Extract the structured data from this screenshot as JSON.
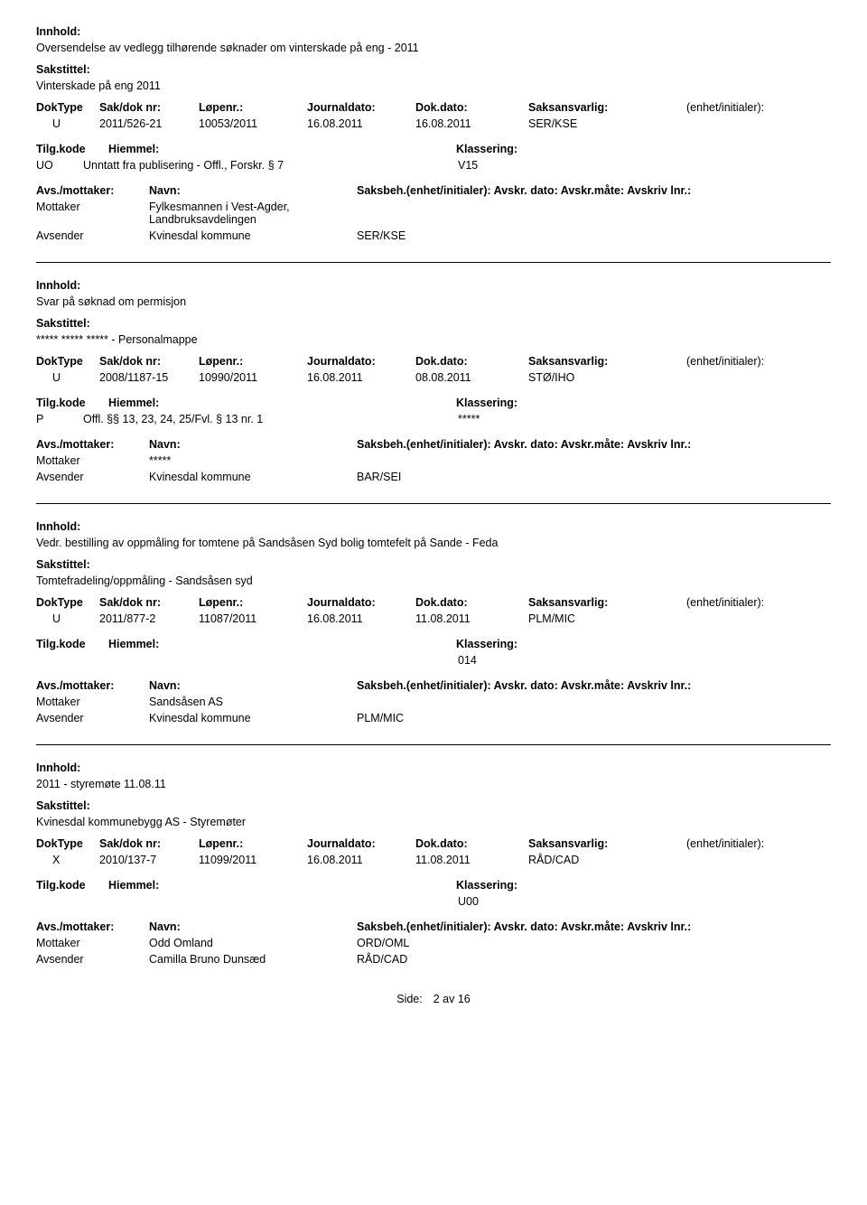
{
  "labels": {
    "innhold": "Innhold:",
    "sakstittel": "Sakstittel:",
    "doktype": "DokType",
    "sakdoknr": "Sak/dok nr:",
    "lopenr": "Løpenr.:",
    "journaldato": "Journaldato:",
    "dokdato": "Dok.dato:",
    "saksansvarlig": "Saksansvarlig:",
    "enhet": "(enhet/initialer):",
    "tilgkode": "Tilg.kode",
    "hiemmel": "Hiemmel:",
    "klassering": "Klassering:",
    "avsmottaker": "Avs./mottaker:",
    "navn": "Navn:",
    "saksbeh": "Saksbeh.(enhet/initialer):",
    "avskrdato": "Avskr. dato:",
    "avskrmate": "Avskr.måte:",
    "avskrivlnr": "Avskriv lnr.:",
    "mottaker": "Mottaker",
    "avsender": "Avsender",
    "side": "Side:",
    "sideval": "2  av  16"
  },
  "entries": [
    {
      "innhold": "Oversendelse av vedlegg tilhørende søknader om vinterskade på eng - 2011",
      "sakstittel": "Vinterskade på eng 2011",
      "doktype": "U",
      "sakdoknr": "2011/526-21",
      "lopenr": "10053/2011",
      "journaldato": "16.08.2011",
      "dokdato": "16.08.2011",
      "saksansvarlig": "SER/KSE",
      "enhet": "",
      "tilgkode": "UO",
      "hiemmel": "Unntatt fra publisering - Offl., Forskr. § 7",
      "klassering": "V15",
      "parties": [
        {
          "role": "Mottaker",
          "name": "Fylkesmannen i Vest-Agder, Landbruksavdelingen",
          "code": ""
        },
        {
          "role": "Avsender",
          "name": "Kvinesdal kommune",
          "code": "SER/KSE"
        }
      ]
    },
    {
      "innhold": "Svar på søknad om permisjon",
      "sakstittel": "***** ***** ***** - Personalmappe",
      "doktype": "U",
      "sakdoknr": "2008/1187-15",
      "lopenr": "10990/2011",
      "journaldato": "16.08.2011",
      "dokdato": "08.08.2011",
      "saksansvarlig": "STØ/IHO",
      "enhet": "",
      "tilgkode": "P",
      "hiemmel": "Offl. §§ 13, 23, 24, 25/Fvl. § 13 nr. 1",
      "klassering": "*****",
      "parties": [
        {
          "role": "Mottaker",
          "name": "*****",
          "code": ""
        },
        {
          "role": "Avsender",
          "name": "Kvinesdal kommune",
          "code": "BAR/SEI"
        }
      ]
    },
    {
      "innhold": "Vedr. bestilling av oppmåling for tomtene på Sandsåsen Syd bolig tomtefelt på Sande - Feda",
      "sakstittel": "Tomtefradeling/oppmåling -  Sandsåsen syd",
      "doktype": "U",
      "sakdoknr": "2011/877-2",
      "lopenr": "11087/2011",
      "journaldato": "16.08.2011",
      "dokdato": "11.08.2011",
      "saksansvarlig": "PLM/MIC",
      "enhet": "",
      "tilgkode": "",
      "hiemmel": "",
      "klassering": "014",
      "parties": [
        {
          "role": "Mottaker",
          "name": "Sandsåsen AS",
          "code": ""
        },
        {
          "role": "Avsender",
          "name": "Kvinesdal kommune",
          "code": "PLM/MIC"
        }
      ]
    },
    {
      "innhold": "2011 - styremøte 11.08.11",
      "sakstittel": "Kvinesdal kommunebygg AS  - Styremøter",
      "doktype": "X",
      "sakdoknr": "2010/137-7",
      "lopenr": "11099/2011",
      "journaldato": "16.08.2011",
      "dokdato": "11.08.2011",
      "saksansvarlig": "RÅD/CAD",
      "enhet": "",
      "tilgkode": "",
      "hiemmel": "",
      "klassering": "U00",
      "parties": [
        {
          "role": "Mottaker",
          "name": "Odd Omland",
          "code": "ORD/OML"
        },
        {
          "role": "Avsender",
          "name": "Camilla Bruno Dunsæd",
          "code": "RÅD/CAD"
        }
      ]
    }
  ]
}
